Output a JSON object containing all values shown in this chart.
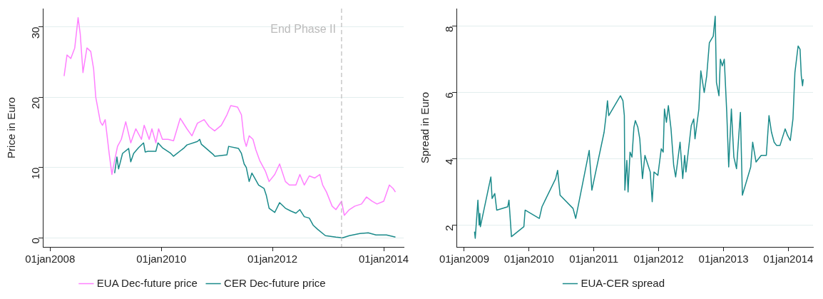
{
  "chart_data": [
    {
      "type": "line",
      "ylabel": "Price in Euro",
      "xlim": [
        "2007-11-14",
        "2014-05-12"
      ],
      "ylim": [
        -1.3,
        32.6
      ],
      "xticks": [
        {
          "value": "2008-01-01",
          "label": "01jan2008"
        },
        {
          "value": "2010-01-01",
          "label": "01jan2010"
        },
        {
          "value": "2012-01-01",
          "label": "01jan2012"
        },
        {
          "value": "2014-01-01",
          "label": "01jan2014"
        }
      ],
      "yticks": [
        0,
        10,
        20,
        30
      ],
      "grid": "y",
      "legend": "bottom",
      "marker": "none",
      "line_style": "solid",
      "ref_lines": [
        {
          "axis": "x",
          "value": "2013-03-30",
          "label": "End Phase II",
          "color": "#bbbbbb",
          "line_style": "dashed"
        }
      ],
      "series": [
        {
          "name": "EUA Dec-future price",
          "color": "#ff80ff",
          "x": [
            "2008-04-02",
            "2008-04-21",
            "2008-05-16",
            "2008-06-11",
            "2008-07-03",
            "2008-07-17",
            "2008-08-04",
            "2008-08-30",
            "2008-09-24",
            "2008-10-13",
            "2008-10-27",
            "2008-11-26",
            "2008-12-10",
            "2008-12-28",
            "2009-01-23",
            "2009-02-10",
            "2009-02-28",
            "2009-03-19",
            "2009-04-13",
            "2009-05-12",
            "2009-06-14",
            "2009-07-17",
            "2009-08-23",
            "2009-09-10",
            "2009-10-13",
            "2009-10-31",
            "2009-11-26",
            "2009-12-14",
            "2010-01-08",
            "2010-02-14",
            "2010-03-22",
            "2010-05-05",
            "2010-06-18",
            "2010-07-21",
            "2010-08-26",
            "2010-10-09",
            "2010-11-11",
            "2010-12-17",
            "2011-01-30",
            "2011-03-08",
            "2011-04-02",
            "2011-05-16",
            "2011-06-11",
            "2011-06-29",
            "2011-07-13",
            "2011-08-01",
            "2011-08-26",
            "2011-09-14",
            "2011-10-09",
            "2011-11-15",
            "2011-12-10",
            "2012-01-16",
            "2012-02-17",
            "2012-03-26",
            "2012-04-21",
            "2012-06-03",
            "2012-06-29",
            "2012-07-28",
            "2012-08-30",
            "2012-10-05",
            "2012-11-07",
            "2012-11-26",
            "2012-12-21",
            "2013-01-27",
            "2013-02-21",
            "2013-03-30",
            "2013-04-17",
            "2013-05-20",
            "2013-06-25",
            "2013-08-08",
            "2013-09-10",
            "2013-10-16",
            "2013-11-18",
            "2014-01-01",
            "2014-02-07",
            "2014-03-04",
            "2014-03-19"
          ],
          "values": [
            23,
            26,
            25.5,
            27,
            31.3,
            29,
            23.5,
            27,
            26.5,
            24,
            20,
            16.5,
            16,
            16.8,
            12,
            9,
            11,
            13,
            14,
            16.5,
            13.5,
            15.5,
            14,
            16,
            14,
            15.5,
            13.5,
            15.5,
            14,
            14,
            13.8,
            17,
            15.5,
            14.5,
            16.3,
            16.8,
            15.8,
            15.2,
            16,
            17.5,
            18.8,
            18.6,
            17.5,
            14,
            13,
            14.5,
            14,
            12.5,
            11,
            9.5,
            8,
            9,
            10.5,
            8,
            7.5,
            7.5,
            9,
            7.5,
            8.8,
            8.5,
            9,
            7.5,
            6.5,
            4.5,
            4,
            5.2,
            3.2,
            4,
            4.5,
            4.8,
            5.8,
            5.2,
            4.8,
            5.2,
            7.5,
            7,
            6.5
          ]
        },
        {
          "name": "CER Dec-future price",
          "color": "#1a8a8a",
          "x": [
            "2009-02-28",
            "2009-03-15",
            "2009-03-26",
            "2009-04-21",
            "2009-05-31",
            "2009-06-14",
            "2009-07-03",
            "2009-08-04",
            "2009-09-06",
            "2009-09-17",
            "2009-10-05",
            "2009-11-26",
            "2009-12-10",
            "2010-01-08",
            "2010-03-04",
            "2010-03-22",
            "2010-05-31",
            "2010-06-18",
            "2010-08-26",
            "2010-09-10",
            "2010-09-21",
            "2010-12-10",
            "2010-12-17",
            "2011-03-08",
            "2011-03-19",
            "2011-05-23",
            "2011-06-11",
            "2011-06-29",
            "2011-07-13",
            "2011-08-01",
            "2011-08-19",
            "2011-09-06",
            "2011-10-02",
            "2011-11-07",
            "2011-11-22",
            "2011-12-10",
            "2012-01-16",
            "2012-02-17",
            "2012-03-26",
            "2012-05-01",
            "2012-06-03",
            "2012-06-29",
            "2012-07-28",
            "2012-08-30",
            "2012-09-24",
            "2012-10-24",
            "2012-12-14",
            "2013-02-21",
            "2013-04-06",
            "2013-05-20",
            "2013-07-28",
            "2013-09-21",
            "2013-11-11",
            "2014-01-19",
            "2014-03-19"
          ],
          "values": [
            9.2,
            11.5,
            9.8,
            12,
            12.7,
            10.8,
            12,
            12.8,
            13.5,
            12.2,
            12.3,
            12.3,
            13.5,
            12.8,
            12,
            11.6,
            12.8,
            13.2,
            13.7,
            14,
            13.3,
            11.8,
            11.6,
            11.8,
            13,
            12.7,
            12,
            10.5,
            10,
            8,
            9.2,
            8.5,
            7.5,
            7,
            6,
            4.2,
            3.6,
            5,
            4.2,
            3.8,
            3.5,
            4,
            3,
            2.8,
            1.8,
            1.2,
            0.3,
            0.1,
            0,
            0.3,
            0.6,
            0.7,
            0.4,
            0.4,
            0.1
          ]
        }
      ]
    },
    {
      "type": "line",
      "ylabel": "Spread in Euro",
      "xlim": [
        "2008-11-18",
        "2014-05-20"
      ],
      "ylim": [
        1.34,
        8.53
      ],
      "xticks": [
        {
          "value": "2009-01-01",
          "label": "01jan2009"
        },
        {
          "value": "2010-01-01",
          "label": "01jan2010"
        },
        {
          "value": "2011-01-01",
          "label": "01jan2011"
        },
        {
          "value": "2012-01-01",
          "label": "01jan2012"
        },
        {
          "value": "2013-01-01",
          "label": "01jan2013"
        },
        {
          "value": "2014-01-01",
          "label": "01jan2014"
        }
      ],
      "yticks": [
        2,
        4,
        6,
        8
      ],
      "grid": "y",
      "legend": "bottom",
      "marker": "none",
      "line_style": "solid",
      "series": [
        {
          "name": "EUA-CER spread",
          "color": "#1a8a8a",
          "x": [
            "2009-02-28",
            "2009-03-04",
            "2009-03-19",
            "2009-03-26",
            "2009-03-30",
            "2009-04-02",
            "2009-05-31",
            "2009-06-07",
            "2009-06-22",
            "2009-07-03",
            "2009-09-03",
            "2009-09-10",
            "2009-09-24",
            "2009-12-03",
            "2009-12-10",
            "2010-02-28",
            "2010-03-15",
            "2010-05-31",
            "2010-06-11",
            "2010-06-25",
            "2010-09-06",
            "2010-09-21",
            "2010-12-06",
            "2010-12-21",
            "2011-02-28",
            "2011-03-11",
            "2011-03-19",
            "2011-03-26",
            "2011-05-31",
            "2011-06-14",
            "2011-06-22",
            "2011-06-25",
            "2011-07-06",
            "2011-07-13",
            "2011-07-24",
            "2011-08-04",
            "2011-08-15",
            "2011-08-23",
            "2011-09-06",
            "2011-09-17",
            "2011-10-02",
            "2011-10-16",
            "2011-10-31",
            "2011-11-15",
            "2011-11-26",
            "2011-12-06",
            "2011-12-28",
            "2012-01-16",
            "2012-01-27",
            "2012-02-03",
            "2012-02-14",
            "2012-02-25",
            "2012-03-11",
            "2012-03-26",
            "2012-04-06",
            "2012-05-01",
            "2012-05-16",
            "2012-05-27",
            "2012-06-03",
            "2012-07-03",
            "2012-07-17",
            "2012-07-24",
            "2012-08-15",
            "2012-08-26",
            "2012-09-14",
            "2012-09-28",
            "2012-10-13",
            "2012-11-04",
            "2012-11-15",
            "2012-11-22",
            "2012-12-06",
            "2012-12-14",
            "2012-12-25",
            "2013-01-05",
            "2013-01-19",
            "2013-01-30",
            "2013-02-14",
            "2013-02-28",
            "2013-03-15",
            "2013-04-06",
            "2013-04-17",
            "2013-06-03",
            "2013-06-14",
            "2013-07-03",
            "2013-08-01",
            "2013-08-30",
            "2013-09-14",
            "2013-09-28",
            "2013-10-13",
            "2013-10-27",
            "2013-11-15",
            "2013-12-14",
            "2013-12-28",
            "2014-01-12",
            "2014-01-27",
            "2014-02-07",
            "2014-02-25",
            "2014-03-08",
            "2014-03-15",
            "2014-03-22",
            "2014-03-26"
          ],
          "values": [
            1.8,
            1.6,
            2.75,
            2.0,
            2.35,
            1.95,
            3.45,
            2.8,
            2.95,
            2.45,
            2.55,
            2.75,
            1.65,
            1.95,
            2.45,
            2.2,
            2.55,
            3.4,
            3.65,
            2.9,
            2.5,
            2.2,
            4.25,
            3.05,
            4.8,
            5.3,
            5.75,
            5.3,
            5.9,
            5.75,
            5.3,
            3.05,
            3.95,
            3.0,
            4.2,
            4.05,
            4.95,
            5.15,
            4.95,
            4.6,
            3.4,
            4.1,
            3.85,
            3.6,
            2.7,
            3.6,
            3.5,
            4.3,
            4.2,
            5.5,
            5.1,
            5.6,
            4.9,
            3.8,
            3.45,
            4.5,
            3.4,
            4.1,
            3.6,
            5.0,
            5.2,
            4.6,
            5.5,
            6.65,
            6.0,
            6.5,
            7.5,
            7.7,
            8.3,
            6.3,
            5.9,
            7.0,
            6.8,
            7.0,
            5.4,
            3.75,
            5.5,
            4.05,
            3.7,
            5.4,
            2.9,
            3.75,
            4.5,
            3.9,
            4.1,
            4.1,
            5.3,
            4.8,
            4.5,
            4.4,
            4.4,
            4.9,
            4.7,
            4.55,
            5.2,
            6.6,
            7.4,
            7.3,
            6.5,
            6.2,
            6.4
          ]
        }
      ]
    }
  ]
}
